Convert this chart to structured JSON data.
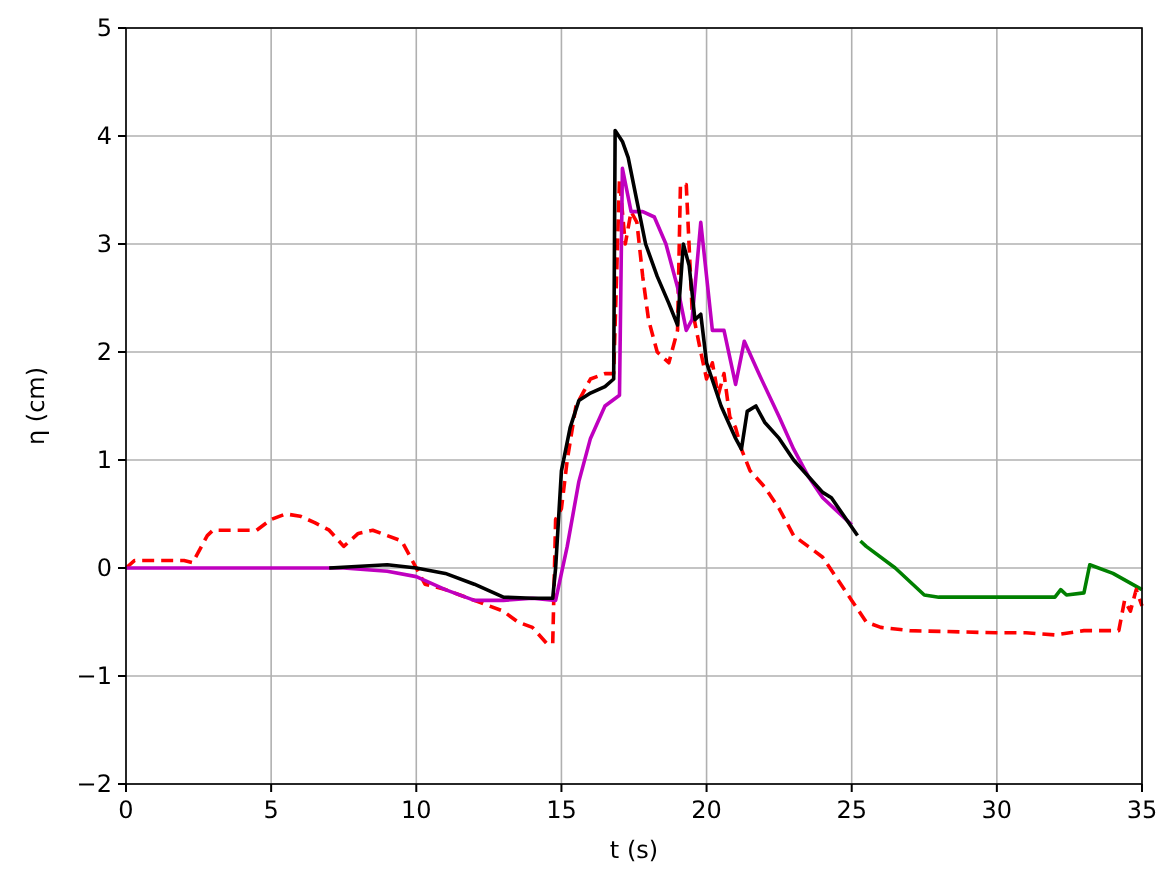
{
  "chart_data": {
    "type": "line",
    "xlabel": "t (s)",
    "ylabel": "η (cm)",
    "xlim": [
      0,
      35
    ],
    "ylim": [
      -2,
      5
    ],
    "xticks": [
      0,
      5,
      10,
      15,
      20,
      25,
      30,
      35
    ],
    "yticks": [
      {
        "value": -2,
        "label": "−2"
      },
      {
        "value": -1,
        "label": "−1"
      },
      0,
      1,
      2,
      3,
      4,
      5
    ],
    "grid": true,
    "series": [
      {
        "color": "#008000",
        "line_style": "solid",
        "x": [
          25.3,
          25.5,
          26.5,
          27.5,
          28,
          32,
          32.2,
          32.4,
          33,
          33.2,
          34,
          35
        ],
        "values": [
          0.25,
          0.2,
          0,
          -0.25,
          -0.27,
          -0.27,
          -0.2,
          -0.25,
          -0.23,
          0.03,
          -0.05,
          -0.2
        ]
      },
      {
        "color": "#ff0000",
        "line_style": "dashed",
        "x": [
          0,
          0.3,
          2,
          2.3,
          2.8,
          3,
          4.5,
          5,
          5.5,
          6,
          6.5,
          7,
          7.5,
          8,
          8.5,
          9,
          9.5,
          10,
          10.3,
          11,
          11.5,
          12,
          13,
          13.5,
          14,
          14.5,
          14.7,
          14.8,
          15,
          15.2,
          15.5,
          16,
          16.5,
          16.8,
          17,
          17.2,
          17.4,
          17.6,
          17.8,
          18,
          18.3,
          18.7,
          19,
          19.1,
          19.3,
          19.5,
          19.8,
          20,
          20.2,
          20.4,
          20.6,
          20.8,
          21,
          21.2,
          21.5,
          22,
          22.5,
          23,
          23.5,
          24,
          24.5,
          25,
          25.5,
          26,
          27,
          30,
          31,
          32,
          33,
          34.2,
          34.4,
          34.6,
          34.8,
          35
        ],
        "values": [
          0,
          0.07,
          0.07,
          0.05,
          0.3,
          0.35,
          0.35,
          0.45,
          0.5,
          0.48,
          0.42,
          0.35,
          0.2,
          0.32,
          0.35,
          0.3,
          0.25,
          0,
          -0.15,
          -0.2,
          -0.25,
          -0.3,
          -0.4,
          -0.5,
          -0.55,
          -0.7,
          -0.7,
          0.45,
          0.55,
          1,
          1.5,
          1.75,
          1.8,
          1.8,
          3.6,
          3,
          3.3,
          3.2,
          2.7,
          2.3,
          2,
          1.9,
          2.2,
          3.55,
          3.55,
          2.4,
          2,
          1.75,
          1.9,
          1.6,
          1.8,
          1.4,
          1.3,
          1.1,
          0.9,
          0.75,
          0.55,
          0.3,
          0.2,
          0.1,
          -0.1,
          -0.3,
          -0.5,
          -0.55,
          -0.58,
          -0.6,
          -0.6,
          -0.62,
          -0.58,
          -0.58,
          -0.3,
          -0.4,
          -0.2,
          -0.35
        ]
      },
      {
        "color": "#bf00bf",
        "line_style": "solid",
        "x": [
          0,
          7.5,
          9,
          10,
          11,
          12,
          13,
          14,
          14.8,
          15.2,
          15.6,
          16,
          16.5,
          17,
          17.1,
          17.4,
          17.8,
          18.2,
          18.6,
          19,
          19.3,
          19.5,
          19.8,
          20.2,
          20.6,
          21,
          21.3,
          21.8,
          22.5,
          23,
          23.5,
          24,
          25
        ],
        "values": [
          0,
          0,
          -0.03,
          -0.08,
          -0.2,
          -0.3,
          -0.3,
          -0.28,
          -0.3,
          0.2,
          0.8,
          1.2,
          1.5,
          1.6,
          3.7,
          3.3,
          3.3,
          3.25,
          3,
          2.6,
          2.2,
          2.3,
          3.2,
          2.2,
          2.2,
          1.7,
          2.1,
          1.8,
          1.4,
          1.1,
          0.85,
          0.65,
          0.4
        ]
      },
      {
        "color": "#000000",
        "line_style": "solid",
        "x": [
          7,
          9,
          10,
          11,
          12,
          13,
          14,
          14.7,
          14.8,
          15,
          15.3,
          15.6,
          16,
          16.5,
          16.8,
          16.85,
          17.1,
          17.3,
          17.6,
          17.9,
          18.3,
          18.7,
          19,
          19.2,
          19.4,
          19.6,
          19.8,
          20,
          20.5,
          21,
          21.2,
          21.4,
          21.7,
          22,
          22.5,
          23,
          23.5,
          24,
          24.3,
          25.2
        ],
        "values": [
          0,
          0.03,
          0,
          -0.05,
          -0.15,
          -0.27,
          -0.28,
          -0.28,
          0,
          0.9,
          1.3,
          1.55,
          1.62,
          1.68,
          1.75,
          4.05,
          3.95,
          3.8,
          3.4,
          3,
          2.7,
          2.45,
          2.25,
          3,
          2.8,
          2.3,
          2.35,
          1.9,
          1.5,
          1.2,
          1.1,
          1.45,
          1.5,
          1.35,
          1.2,
          1,
          0.85,
          0.7,
          0.65,
          0.3
        ]
      }
    ]
  }
}
